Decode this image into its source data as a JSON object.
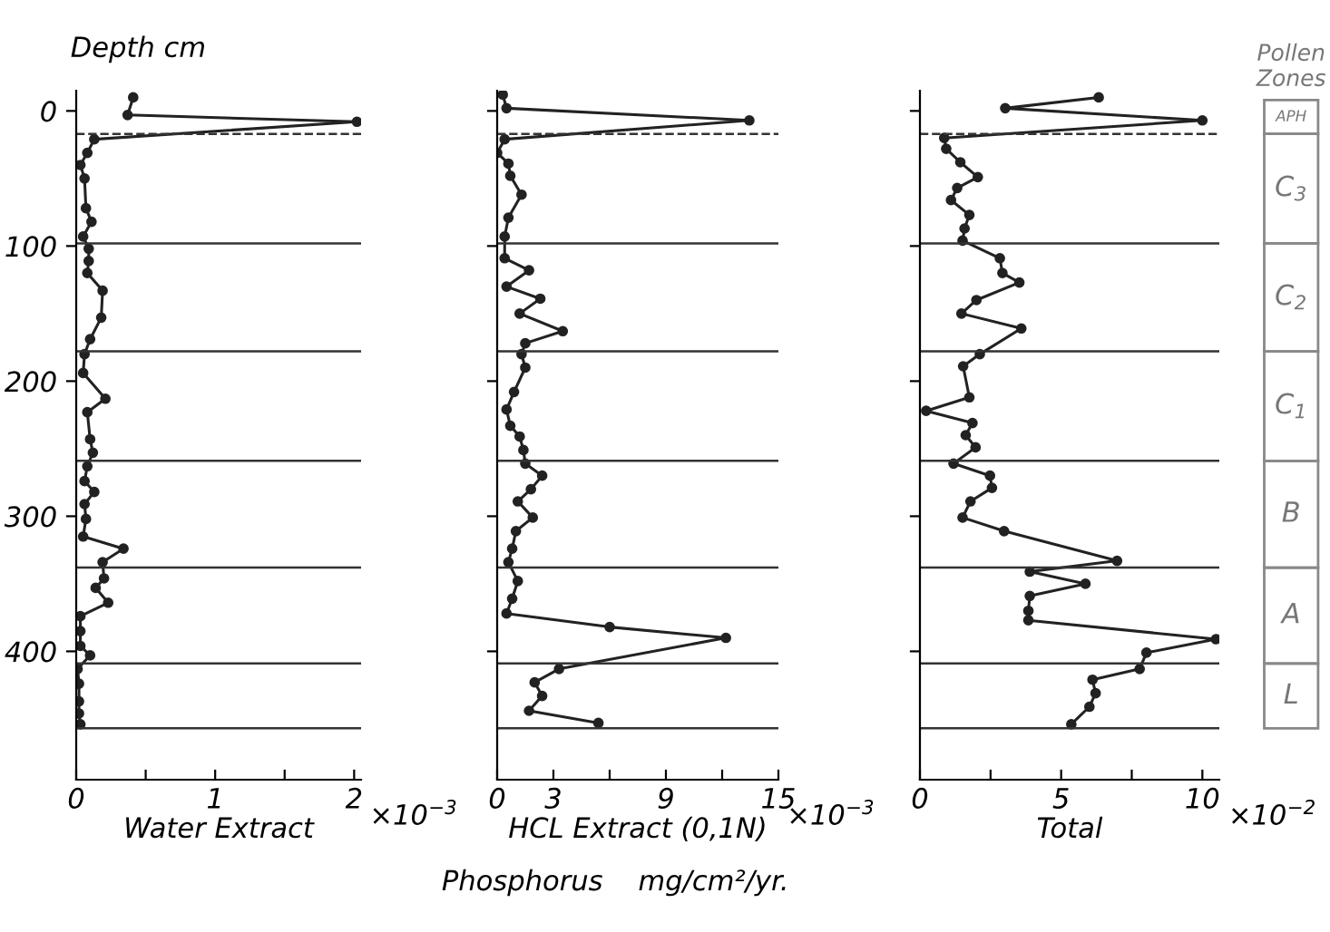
{
  "chart_data": [
    {
      "type": "line",
      "ylabel": "Depth cm",
      "xlabel": "Water Extract",
      "annotations": [
        "×10$^{−3}$"
      ],
      "xlim": [
        0,
        2.05
      ],
      "xticks": [
        0,
        {
          "value": 0.5,
          "label": null
        },
        1,
        {
          "value": 1.5,
          "label": null
        },
        2
      ],
      "ylim": [
        495,
        -15
      ],
      "yticks": [
        0,
        100,
        200,
        300,
        400
      ],
      "marker": "circle",
      "line_style": "solid",
      "series": [
        {
          "color": "#222222",
          "values": [
            -10,
            3,
            8,
            21,
            31,
            40,
            50,
            72,
            82,
            93,
            102,
            111,
            120,
            133,
            153,
            169,
            180,
            194,
            213,
            223,
            243,
            253,
            263,
            274,
            282,
            291,
            302,
            315,
            324,
            334,
            346,
            353,
            364,
            374,
            385,
            396,
            403,
            413,
            424,
            437,
            446,
            454
          ],
          "x": [
            0.41,
            0.37,
            2.02,
            0.13,
            0.08,
            0.03,
            0.06,
            0.07,
            0.11,
            0.05,
            0.09,
            0.09,
            0.08,
            0.19,
            0.18,
            0.1,
            0.06,
            0.05,
            0.21,
            0.08,
            0.1,
            0.12,
            0.08,
            0.06,
            0.13,
            0.06,
            0.07,
            0.05,
            0.34,
            0.19,
            0.2,
            0.14,
            0.23,
            0.03,
            0.03,
            0.03,
            0.1,
            0.01,
            0.02,
            0.02,
            0.02,
            0.03
          ]
        }
      ],
      "ref_lines": [
        {
          "axis": "y",
          "value": 17,
          "line_style": "dashed"
        },
        {
          "axis": "y",
          "value": 98
        },
        {
          "axis": "y",
          "value": 178
        },
        {
          "axis": "y",
          "value": 259
        },
        {
          "axis": "y",
          "value": 338
        },
        {
          "axis": "y",
          "value": 409
        },
        {
          "axis": "y",
          "value": 457
        }
      ]
    },
    {
      "type": "line",
      "xlabel": "HCL Extract (0,1N)",
      "annotations": [
        "×10$^{−3}$",
        "Phosphorus    mg/cm²/yr."
      ],
      "xlim": [
        0,
        15
      ],
      "xticks": [
        0,
        3,
        {
          "value": 6,
          "label": null
        },
        9,
        {
          "value": 12,
          "label": null
        },
        15
      ],
      "ylim": [
        495,
        -15
      ],
      "yticks": [
        0,
        100,
        200,
        300,
        400
      ],
      "tick_labels": "x",
      "marker": "circle",
      "line_style": "solid",
      "series": [
        {
          "color": "#222222",
          "values": [
            -12,
            -2,
            7,
            21,
            31,
            39,
            48,
            62,
            79,
            93,
            109,
            118,
            130,
            139,
            150,
            163,
            172,
            180,
            190,
            208,
            221,
            233,
            241,
            251,
            261,
            270,
            280,
            289,
            301,
            311,
            324,
            334,
            348,
            361,
            372,
            382,
            390,
            413,
            423,
            433,
            444,
            453
          ],
          "x": [
            0.3,
            0.5,
            13.45,
            0.4,
            0,
            0.6,
            0.7,
            1.3,
            0.6,
            0.4,
            0.4,
            1.7,
            0.5,
            2.3,
            1.2,
            3.5,
            1.5,
            1.3,
            1.5,
            0.9,
            0.5,
            0.7,
            1.2,
            1.4,
            1.5,
            2.4,
            1.8,
            1.1,
            1.9,
            1.0,
            0.8,
            0.6,
            1.1,
            0.8,
            0.5,
            6.0,
            12.2,
            3.3,
            2.0,
            2.4,
            1.7,
            5.4
          ]
        }
      ],
      "ref_lines": [
        {
          "axis": "y",
          "value": 17,
          "line_style": "dashed"
        },
        {
          "axis": "y",
          "value": 98
        },
        {
          "axis": "y",
          "value": 178
        },
        {
          "axis": "y",
          "value": 259
        },
        {
          "axis": "y",
          "value": 338
        },
        {
          "axis": "y",
          "value": 409
        },
        {
          "axis": "y",
          "value": 457
        }
      ]
    },
    {
      "type": "line",
      "xlabel": "Total",
      "annotations": [
        "×10$^{−2}$",
        "Pollen\nZones",
        "APH",
        "C$_{3}$",
        "C$_{2}$",
        "C$_{1}$",
        "B",
        "A",
        "L"
      ],
      "xlim": [
        0,
        10.6
      ],
      "xticks": [
        0,
        {
          "value": 2.5,
          "label": null
        },
        5,
        {
          "value": 7.5,
          "label": null
        },
        10
      ],
      "ylim": [
        495,
        -15
      ],
      "yticks": [
        0,
        100,
        200,
        300,
        400
      ],
      "tick_labels": "x",
      "marker": "circle",
      "line_style": "solid",
      "series": [
        {
          "color": "#222222",
          "values": [
            -10,
            -2,
            7,
            20,
            28,
            38,
            49,
            57,
            66,
            77,
            87,
            96,
            109,
            120,
            127,
            140,
            150,
            161,
            180,
            189,
            212,
            222,
            231,
            240,
            249,
            261,
            270,
            279,
            289,
            301,
            311,
            333,
            341,
            350,
            359,
            370,
            377,
            391,
            401,
            413,
            421,
            431,
            441,
            454
          ],
          "x": [
            6.33,
            3.02,
            10.0,
            0.86,
            0.93,
            1.43,
            2.05,
            1.32,
            1.1,
            1.75,
            1.58,
            1.51,
            2.83,
            2.92,
            3.52,
            2.0,
            1.47,
            3.59,
            2.12,
            1.53,
            1.75,
            0.22,
            1.86,
            1.62,
            1.97,
            1.19,
            2.48,
            2.55,
            1.79,
            1.51,
            2.98,
            6.98,
            3.89,
            5.86,
            3.89,
            3.84,
            3.84,
            10.48,
            8.02,
            7.78,
            6.11,
            6.22,
            6.0,
            5.36
          ]
        }
      ],
      "ref_lines": [
        {
          "axis": "y",
          "value": 17,
          "line_style": "dashed"
        },
        {
          "axis": "y",
          "value": 98
        },
        {
          "axis": "y",
          "value": 178
        },
        {
          "axis": "y",
          "value": 259
        },
        {
          "axis": "y",
          "value": 338
        },
        {
          "axis": "y",
          "value": 409
        },
        {
          "axis": "y",
          "value": 457
        }
      ]
    }
  ]
}
